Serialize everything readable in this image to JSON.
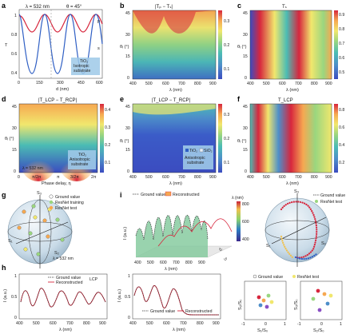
{
  "colors": {
    "red": "#d7263d",
    "blue": "#2f5fc4",
    "navy": "#1d1a8c",
    "accent_box": "#9ec9e8",
    "cmap": [
      "#3b4cc0",
      "#4d8ec9",
      "#4bbcb4",
      "#9ad67f",
      "#f1e76d",
      "#f6a851",
      "#d7263d"
    ]
  },
  "panels": {
    "a": {
      "letter": "a",
      "param1": "λ = 532 nm",
      "param2": "θ = 45°",
      "ylabel": "T",
      "xlabel": "d (nm)",
      "xticks": [
        "0",
        "150",
        "300",
        "450",
        "600"
      ],
      "yticks": [
        "0.4",
        "0.6",
        "0.8",
        "1"
      ],
      "curve_p": "p",
      "curve_s": "s",
      "legend_line1": "TiO₂",
      "legend_line2": "Isotropic",
      "legend_line3": "substrate"
    },
    "b": {
      "letter": "b",
      "title": "|Tₚ − Tₛ|",
      "ylabel": "θᵢ (°)",
      "xlabel": "λ (nm)",
      "xticks": [
        "400",
        "500",
        "600",
        "700",
        "800",
        "900"
      ],
      "yticks": [
        "0",
        "15",
        "30",
        "45"
      ],
      "cbar": [
        "0.1",
        "0.2",
        "0.3"
      ]
    },
    "c": {
      "letter": "c",
      "title": "Tₛ",
      "ylabel": "θᵢ (°)",
      "xlabel": "λ (nm)",
      "xticks": [
        "400",
        "500",
        "600",
        "700",
        "800",
        "900"
      ],
      "yticks": [
        "0",
        "15",
        "30",
        "45"
      ],
      "cbar": [
        "0.5",
        "0.6",
        "0.7",
        "0.8",
        "0.9"
      ]
    },
    "d": {
      "letter": "d",
      "title": "|T_LCP − T_RCP|",
      "ylabel": "θᵢ (°)",
      "xlabel": "Phase delay, η",
      "xticks": [
        "0",
        "π/2π",
        "π",
        "3/2π",
        "2π"
      ],
      "yticks": [
        "0",
        "15",
        "30",
        "45"
      ],
      "cbar": [
        "0.1",
        "0.2",
        "0.3",
        "0.4"
      ],
      "note": "λ = 532 nm",
      "legend_line1": "TiO₂",
      "legend_line2": "Anisotropic",
      "legend_line3": "substrate"
    },
    "e": {
      "letter": "e",
      "title": "|T_LCP − T_RCP|",
      "ylabel": "θᵢ (°)",
      "xlabel": "λ (nm)",
      "xticks": [
        "400",
        "500",
        "600",
        "700",
        "800",
        "900"
      ],
      "yticks": [
        "0",
        "15",
        "30",
        "45"
      ],
      "cbar": [
        "0.1",
        "0.2",
        "0.3"
      ],
      "legend_tio2": "TiO₂",
      "legend_sio2": "SiO₂",
      "legend_line2": "Anisotropic",
      "legend_line3": "substrate"
    },
    "f": {
      "letter": "f",
      "title": "T_LCP",
      "ylabel": "θᵢ (°)",
      "xlabel": "λ (nm)",
      "xticks": [
        "400",
        "500",
        "600",
        "700",
        "800",
        "900"
      ],
      "yticks": [
        "0",
        "15",
        "30",
        "45"
      ],
      "cbar": [
        "0.2",
        "0.4",
        "0.6",
        "0.8"
      ]
    },
    "g": {
      "letter": "g",
      "legend": [
        "Ground value",
        "ResNet training",
        "ResNet test"
      ],
      "axes": [
        "S₃",
        "S₁",
        "S₂"
      ],
      "note": "λ = 532 nm"
    },
    "i": {
      "letter": "i",
      "legend_ground": "Ground value",
      "legend_recon": "Reconstructed",
      "cbar_title": "λ (nm)",
      "cbar": [
        "800",
        "600",
        "400"
      ],
      "ylabel": "I (a.u.)",
      "xlabel": "λ (nm)",
      "xticks": [
        "400",
        "500",
        "600",
        "700",
        "800",
        "900"
      ],
      "sphere_legend": [
        "Ground value",
        "ResNet test"
      ],
      "axes": [
        "S₃",
        "S₁",
        "S₂"
      ]
    },
    "h": {
      "letter": "h",
      "tag": "LCP",
      "legend": [
        "Ground value",
        "Reconstructed"
      ],
      "ylabel": "I (a.u.)",
      "xlabel": "λ (nm)",
      "xticks": [
        "400",
        "500",
        "600",
        "700",
        "800",
        "900"
      ],
      "yticks": [
        "0",
        "0.5",
        "1"
      ]
    },
    "h2": {
      "ylabel": "I (a.u.)",
      "xlabel": "λ (nm)",
      "xticks": [
        "400",
        "500",
        "600",
        "700",
        "800",
        "900"
      ],
      "yticks": [
        "0",
        "0.5",
        "1"
      ],
      "legend": [
        "Ground value",
        "Reconstructed"
      ]
    },
    "j": {
      "legend": [
        "Ground value",
        "ResNet test"
      ],
      "xlabel1": "S₁/S₀",
      "ylabel1": "S₂/S₀",
      "xlabel2": "S₂/S₀",
      "ylabel2": "S₃/S₀",
      "ticks": [
        "-1",
        "0",
        "1"
      ]
    }
  }
}
